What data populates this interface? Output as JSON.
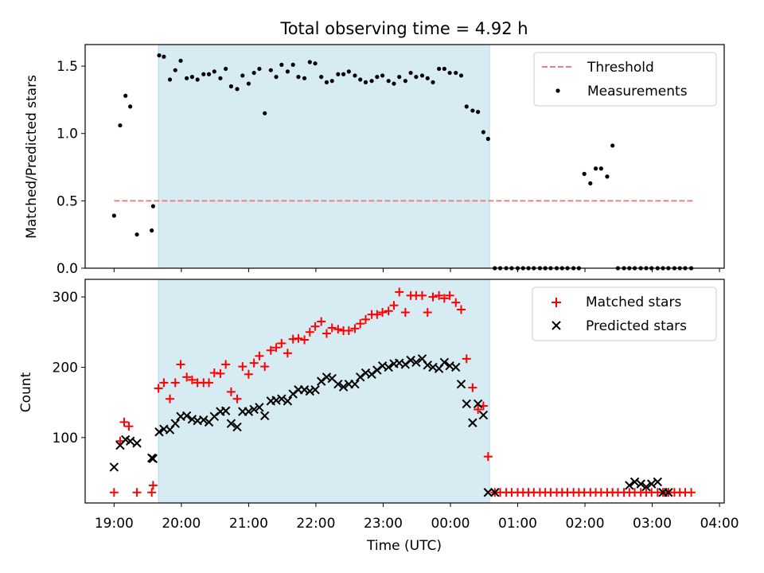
{
  "chart_data": [
    {
      "type": "scatter",
      "title": "Total observing time = 4.92 h",
      "xlabel": "",
      "ylabel": "Matched/Predicted stars",
      "ylim": [
        0,
        1.66
      ],
      "yticks": [
        0.0,
        0.5,
        1.0,
        1.5
      ],
      "ytick_labels": [
        "0.0",
        "0.5",
        "1.0",
        "1.5"
      ],
      "xlim": [
        -0.43,
        9.07
      ],
      "shaded_interval": [
        0.66,
        5.58
      ],
      "legend_position": "upper right",
      "threshold": {
        "name": "Threshold",
        "value": 0.5,
        "x_range": [
          0.0,
          8.6
        ],
        "color": "#f08080"
      },
      "series": [
        {
          "name": "Measurements",
          "color": "#000000",
          "x": [
            0.0,
            0.09,
            0.17,
            0.24,
            0.34,
            0.56,
            0.58,
            0.67,
            0.74,
            0.83,
            0.91,
            0.99,
            1.08,
            1.16,
            1.24,
            1.33,
            1.41,
            1.49,
            1.58,
            1.66,
            1.74,
            1.83,
            1.91,
            2.0,
            2.08,
            2.16,
            2.24,
            2.33,
            2.41,
            2.49,
            2.58,
            2.66,
            2.74,
            2.83,
            2.91,
            2.99,
            3.08,
            3.16,
            3.24,
            3.33,
            3.41,
            3.49,
            3.58,
            3.66,
            3.74,
            3.83,
            3.91,
            3.99,
            4.08,
            4.16,
            4.24,
            4.33,
            4.41,
            4.49,
            4.58,
            4.66,
            4.74,
            4.83,
            4.91,
            4.99,
            5.08,
            5.16,
            5.24,
            5.33,
            5.41,
            5.49,
            5.56,
            5.66,
            5.74,
            5.83,
            5.91,
            6.0,
            6.08,
            6.16,
            6.24,
            6.33,
            6.41,
            6.49,
            6.58,
            6.66,
            6.74,
            6.83,
            6.91,
            6.99,
            7.08,
            7.16,
            7.24,
            7.33,
            7.41,
            7.49,
            7.58,
            7.66,
            7.74,
            7.83,
            7.91,
            7.99,
            8.08,
            8.16,
            8.24,
            8.33,
            8.41,
            8.49,
            8.58
          ],
          "y": [
            0.39,
            1.06,
            1.28,
            1.2,
            0.25,
            0.28,
            0.46,
            1.58,
            1.57,
            1.4,
            1.47,
            1.54,
            1.41,
            1.42,
            1.4,
            1.44,
            1.44,
            1.46,
            1.41,
            1.48,
            1.35,
            1.33,
            1.43,
            1.37,
            1.45,
            1.48,
            1.15,
            1.47,
            1.42,
            1.51,
            1.46,
            1.51,
            1.42,
            1.41,
            1.53,
            1.52,
            1.42,
            1.38,
            1.39,
            1.44,
            1.44,
            1.46,
            1.43,
            1.4,
            1.38,
            1.39,
            1.42,
            1.43,
            1.39,
            1.37,
            1.42,
            1.39,
            1.45,
            1.42,
            1.43,
            1.41,
            1.38,
            1.48,
            1.48,
            1.45,
            1.45,
            1.43,
            1.2,
            1.17,
            1.16,
            1.01,
            0.96,
            0.0,
            0.0,
            0.0,
            0.0,
            0.0,
            0.0,
            0.0,
            0.0,
            0.0,
            0.0,
            0.0,
            0.0,
            0.0,
            0.0,
            0.0,
            0.0,
            0.7,
            0.63,
            0.74,
            0.74,
            0.68,
            0.91,
            0.0,
            0.0,
            0.0,
            0.0,
            0.0,
            0.0,
            0.0,
            0.0,
            0.0,
            0.0,
            0.0,
            0.0,
            0.0,
            0.0
          ]
        }
      ]
    },
    {
      "type": "scatter",
      "title": "",
      "xlabel": "Time (UTC)",
      "ylabel": "Count",
      "ylim": [
        7,
        325
      ],
      "yticks": [
        100,
        200,
        300
      ],
      "ytick_labels": [
        "100",
        "200",
        "300"
      ],
      "xlim": [
        -0.43,
        9.07
      ],
      "xticks": [
        0,
        1,
        2,
        3,
        4,
        5,
        6,
        7,
        8,
        9
      ],
      "xtick_labels": [
        "19:00",
        "20:00",
        "21:00",
        "22:00",
        "23:00",
        "00:00",
        "01:00",
        "02:00",
        "03:00",
        "04:00"
      ],
      "shaded_interval": [
        0.66,
        5.58
      ],
      "legend_position": "upper right",
      "series": [
        {
          "name": "Matched stars",
          "marker": "plus",
          "color": "#ff0000",
          "x": [
            0.0,
            0.09,
            0.15,
            0.22,
            0.34,
            0.56,
            0.58,
            0.66,
            0.74,
            0.83,
            0.91,
            0.99,
            1.08,
            1.16,
            1.24,
            1.33,
            1.41,
            1.49,
            1.58,
            1.66,
            1.74,
            1.83,
            1.91,
            2.0,
            2.08,
            2.16,
            2.24,
            2.33,
            2.41,
            2.49,
            2.58,
            2.66,
            2.74,
            2.83,
            2.91,
            2.99,
            3.08,
            3.16,
            3.24,
            3.33,
            3.41,
            3.49,
            3.58,
            3.66,
            3.74,
            3.83,
            3.91,
            3.99,
            4.08,
            4.16,
            4.24,
            4.33,
            4.41,
            4.49,
            4.58,
            4.66,
            4.74,
            4.83,
            4.91,
            4.99,
            5.08,
            5.16,
            5.24,
            5.33,
            5.41,
            5.49,
            5.56,
            5.66,
            5.74,
            5.83,
            5.91,
            6.0,
            6.08,
            6.16,
            6.24,
            6.33,
            6.41,
            6.49,
            6.58,
            6.66,
            6.74,
            6.83,
            6.91,
            6.99,
            7.08,
            7.16,
            7.24,
            7.33,
            7.41,
            7.49,
            7.58,
            7.66,
            7.74,
            7.83,
            7.91,
            7.99,
            8.08,
            8.16,
            8.24,
            8.33,
            8.41,
            8.49,
            8.58
          ],
          "y": [
            22,
            95,
            122,
            116,
            22,
            22,
            32,
            170,
            178,
            155,
            178,
            204,
            186,
            182,
            178,
            178,
            178,
            192,
            191,
            204,
            165,
            155,
            201,
            190,
            206,
            216,
            201,
            224,
            228,
            234,
            220,
            240,
            241,
            239,
            250,
            258,
            265,
            248,
            256,
            254,
            252,
            252,
            255,
            262,
            268,
            275,
            275,
            278,
            280,
            288,
            307,
            278,
            302,
            302,
            302,
            278,
            300,
            302,
            298,
            302,
            292,
            282,
            212,
            171,
            140,
            145,
            73,
            22,
            22,
            22,
            22,
            22,
            22,
            22,
            22,
            22,
            22,
            22,
            22,
            22,
            22,
            22,
            22,
            22,
            22,
            22,
            22,
            22,
            22,
            22,
            22,
            22,
            22,
            22,
            22,
            22,
            22,
            22,
            22,
            22,
            22,
            22,
            22
          ]
        },
        {
          "name": "Predicted stars",
          "marker": "x",
          "color": "#000000",
          "x": [
            0.0,
            0.09,
            0.17,
            0.24,
            0.34,
            0.56,
            0.58,
            0.67,
            0.74,
            0.83,
            0.91,
            0.99,
            1.08,
            1.16,
            1.24,
            1.33,
            1.41,
            1.49,
            1.58,
            1.66,
            1.74,
            1.83,
            1.91,
            2.0,
            2.08,
            2.16,
            2.24,
            2.33,
            2.41,
            2.49,
            2.58,
            2.66,
            2.74,
            2.83,
            2.91,
            2.99,
            3.08,
            3.16,
            3.24,
            3.33,
            3.41,
            3.49,
            3.58,
            3.66,
            3.74,
            3.83,
            3.91,
            3.99,
            4.08,
            4.16,
            4.24,
            4.33,
            4.41,
            4.49,
            4.58,
            4.66,
            4.74,
            4.83,
            4.91,
            4.99,
            5.08,
            5.16,
            5.24,
            5.33,
            5.41,
            5.49,
            5.56,
            5.66,
            7.66,
            7.74,
            7.83,
            7.91,
            7.99,
            8.08,
            8.16,
            8.24
          ],
          "y": [
            58,
            89,
            97,
            95,
            92,
            71,
            70,
            108,
            112,
            111,
            120,
            130,
            131,
            126,
            124,
            125,
            122,
            130,
            137,
            138,
            120,
            115,
            137,
            137,
            140,
            143,
            131,
            152,
            153,
            155,
            152,
            162,
            168,
            168,
            166,
            168,
            180,
            186,
            184,
            176,
            172,
            176,
            176,
            186,
            192,
            190,
            196,
            202,
            200,
            205,
            206,
            204,
            210,
            207,
            212,
            203,
            200,
            198,
            207,
            202,
            200,
            176,
            148,
            121,
            148,
            132,
            22,
            22,
            32,
            37,
            34,
            30,
            34,
            37,
            22,
            22
          ]
        }
      ]
    }
  ]
}
